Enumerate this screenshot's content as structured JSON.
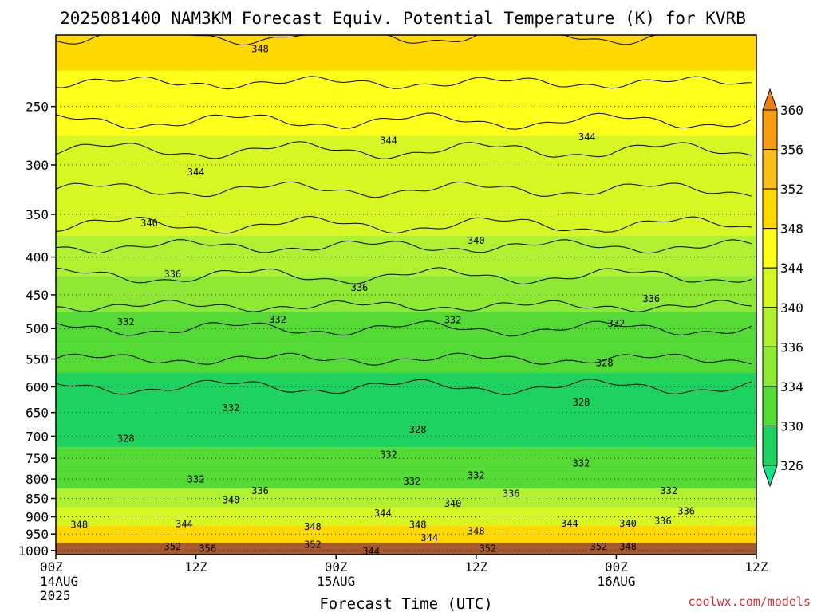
{
  "chart_data": {
    "type": "heatmap",
    "title": "2025081400 NAM3KM Forecast Equiv. Potential Temperature (K) for KVRB",
    "xlabel": "Forecast Time (UTC)",
    "ylabel": "",
    "credit": "coolwx.com/models",
    "x_ticks": [
      {
        "hour": 0,
        "label": "00Z",
        "date": "14AUG",
        "year": "2025"
      },
      {
        "hour": 12,
        "label": "12Z",
        "date": "",
        "year": ""
      },
      {
        "hour": 24,
        "label": "00Z",
        "date": "15AUG",
        "year": ""
      },
      {
        "hour": 36,
        "label": "12Z",
        "date": "",
        "year": ""
      },
      {
        "hour": 48,
        "label": "00Z",
        "date": "16AUG",
        "year": ""
      },
      {
        "hour": 60,
        "label": "12Z",
        "date": "",
        "year": ""
      }
    ],
    "xlim": [
      0,
      60
    ],
    "y_ticks": [
      250,
      300,
      350,
      400,
      450,
      500,
      550,
      600,
      650,
      700,
      750,
      800,
      850,
      900,
      950,
      1000
    ],
    "ylim": [
      200,
      1013
    ],
    "y_scale": "log",
    "y_inverted": true,
    "colorbar": {
      "labels": [
        360,
        356,
        352,
        348,
        344,
        340,
        336,
        334,
        330,
        326
      ],
      "colors": [
        "#ee7f12",
        "#f59e14",
        "#fabe1a",
        "#ffd800",
        "#ffff1a",
        "#d7f723",
        "#aff030",
        "#8ee834",
        "#54da34",
        "#1ed260",
        "#10e88a"
      ],
      "extend": "both"
    },
    "layers": [
      {
        "p": 200,
        "theta": 350
      },
      {
        "p": 250,
        "theta": 347
      },
      {
        "p": 300,
        "theta": 343
      },
      {
        "p": 350,
        "theta": 341
      },
      {
        "p": 400,
        "theta": 337
      },
      {
        "p": 450,
        "theta": 335
      },
      {
        "p": 500,
        "theta": 332
      },
      {
        "p": 550,
        "theta": 330
      },
      {
        "p": 600,
        "theta": 328
      },
      {
        "p": 700,
        "theta": 328
      },
      {
        "p": 750,
        "theta": 330
      },
      {
        "p": 800,
        "theta": 333
      },
      {
        "p": 850,
        "theta": 338
      },
      {
        "p": 900,
        "theta": 343
      },
      {
        "p": 950,
        "theta": 348
      },
      {
        "p": 1000,
        "theta": 352
      }
    ],
    "contour_labels": [
      {
        "hour": 17.5,
        "p": 209,
        "value": 348
      },
      {
        "hour": 28.5,
        "p": 278,
        "value": 344
      },
      {
        "hour": 45.5,
        "p": 275,
        "value": 344
      },
      {
        "hour": 12,
        "p": 307,
        "value": 344
      },
      {
        "hour": 8,
        "p": 360,
        "value": 340
      },
      {
        "hour": 36,
        "p": 380,
        "value": 340
      },
      {
        "hour": 10,
        "p": 422,
        "value": 336
      },
      {
        "hour": 26,
        "p": 440,
        "value": 336
      },
      {
        "hour": 51,
        "p": 456,
        "value": 336
      },
      {
        "hour": 6,
        "p": 490,
        "value": 332
      },
      {
        "hour": 19,
        "p": 486,
        "value": 332
      },
      {
        "hour": 34,
        "p": 487,
        "value": 332
      },
      {
        "hour": 48,
        "p": 492,
        "value": 332
      },
      {
        "hour": 47,
        "p": 557,
        "value": 328
      },
      {
        "hour": 15,
        "p": 641,
        "value": 332
      },
      {
        "hour": 45,
        "p": 630,
        "value": 328
      },
      {
        "hour": 6,
        "p": 705,
        "value": 328
      },
      {
        "hour": 31,
        "p": 685,
        "value": 328
      },
      {
        "hour": 28.5,
        "p": 741,
        "value": 332
      },
      {
        "hour": 45,
        "p": 762,
        "value": 332
      },
      {
        "hour": 12,
        "p": 801,
        "value": 332
      },
      {
        "hour": 30.5,
        "p": 806,
        "value": 332
      },
      {
        "hour": 36,
        "p": 791,
        "value": 332
      },
      {
        "hour": 17.5,
        "p": 830,
        "value": 336
      },
      {
        "hour": 39,
        "p": 837,
        "value": 336
      },
      {
        "hour": 52.5,
        "p": 830,
        "value": 332
      },
      {
        "hour": 15,
        "p": 854,
        "value": 340
      },
      {
        "hour": 34,
        "p": 864,
        "value": 340
      },
      {
        "hour": 28,
        "p": 890,
        "value": 344
      },
      {
        "hour": 54,
        "p": 885,
        "value": 336
      },
      {
        "hour": 2,
        "p": 923,
        "value": 348
      },
      {
        "hour": 11,
        "p": 921,
        "value": 344
      },
      {
        "hour": 22,
        "p": 929,
        "value": 348
      },
      {
        "hour": 31,
        "p": 923,
        "value": 348
      },
      {
        "hour": 36,
        "p": 941,
        "value": 348
      },
      {
        "hour": 44,
        "p": 919,
        "value": 344
      },
      {
        "hour": 49,
        "p": 919,
        "value": 340
      },
      {
        "hour": 52,
        "p": 912,
        "value": 336
      },
      {
        "hour": 32,
        "p": 962,
        "value": 344
      },
      {
        "hour": 10,
        "p": 988,
        "value": 352
      },
      {
        "hour": 13,
        "p": 994,
        "value": 356
      },
      {
        "hour": 22,
        "p": 982,
        "value": 352
      },
      {
        "hour": 27,
        "p": 1003,
        "value": 344
      },
      {
        "hour": 37,
        "p": 994,
        "value": 352
      },
      {
        "hour": 46.5,
        "p": 988,
        "value": 352
      },
      {
        "hour": 49,
        "p": 988,
        "value": 348
      }
    ]
  }
}
